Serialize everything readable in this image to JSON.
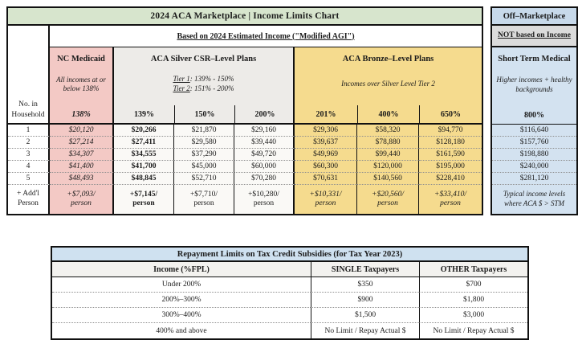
{
  "colors": {
    "green": "#d7e5cd",
    "pink": "#f3c9c5",
    "silver-head": "#edebe8",
    "silver-cell": "#faf9f6",
    "bronze": "#f5db8e",
    "off-header": "#c7d9ea",
    "off-body": "#d3e2f0",
    "off-gray": "#dbdbdb",
    "bt-title": "#cfe1f0",
    "bt-head": "#f3f2ef",
    "line": "#111111",
    "dot": "#8f8f8f"
  },
  "main": {
    "title": "2024 ACA Marketplace | Income Limits Chart",
    "subtitle": "Based on 2024 Estimated Income (\"Modified AGI\")",
    "household_header": "No. in Household",
    "sections": {
      "medicaid": {
        "title": "NC Medicaid",
        "note": "All incomes at or below 138%"
      },
      "silver": {
        "title": "ACA Silver CSR–Level Plans",
        "tiers": [
          {
            "label": "Tier 1",
            "range": ": 139% - 150%"
          },
          {
            "label": "Tier 2",
            "range": ": 151% - 200%"
          }
        ]
      },
      "bronze": {
        "title": "ACA Bronze–Level Plans",
        "note": "Incomes over Silver Level Tier 2"
      }
    },
    "percent_headers": [
      "138%",
      "139%",
      "150%",
      "200%",
      "201%",
      "400%",
      "650%"
    ],
    "rows": [
      {
        "label": "1",
        "values": [
          "$20,120",
          "$20,266",
          "$21,870",
          "$29,160",
          "$29,306",
          "$58,320",
          "$94,770"
        ]
      },
      {
        "label": "2",
        "values": [
          "$27,214",
          "$27,411",
          "$29,580",
          "$39,440",
          "$39,637",
          "$78,880",
          "$128,180"
        ]
      },
      {
        "label": "3",
        "values": [
          "$34,307",
          "$34,555",
          "$37,290",
          "$49,720",
          "$49,969",
          "$99,440",
          "$161,590"
        ]
      },
      {
        "label": "4",
        "values": [
          "$41,400",
          "$41,700",
          "$45,000",
          "$60,000",
          "$60,300",
          "$120,000",
          "$195,000"
        ]
      },
      {
        "label": "5",
        "values": [
          "$48,493",
          "$48,845",
          "$52,710",
          "$70,280",
          "$70,631",
          "$140,560",
          "$228,410"
        ]
      }
    ],
    "addl": {
      "label": "+ Add'l Person",
      "values": [
        "+$7,093/",
        "+$7,145/",
        "+$7,710/",
        "+$10,280/",
        "+$10,331/",
        "+$20,560/",
        "+$33,410/"
      ],
      "person_label": "person"
    }
  },
  "off_marketplace": {
    "title": "Off–Marketplace",
    "not_based": "NOT based on Income",
    "section_title": "Short Term Medical",
    "note": "Higher incomes + healthy backgrounds",
    "percent_header": "800%",
    "values": [
      "$116,640",
      "$157,760",
      "$198,880",
      "$240,000",
      "$281,120"
    ],
    "footer": "Typical income levels where ACA $ > STM"
  },
  "repayment": {
    "title": "Repayment Limits on Tax Credit Subsidies (for Tax Year 2023)",
    "headers": [
      "Income (%FPL)",
      "SINGLE Taxpayers",
      "OTHER Taxpayers"
    ],
    "rows": [
      {
        "income": "Under 200%",
        "single": "$350",
        "other": "$700"
      },
      {
        "income": "200%–300%",
        "single": "$900",
        "other": "$1,800"
      },
      {
        "income": "300%–400%",
        "single": "$1,500",
        "other": "$3,000"
      },
      {
        "income": "400% and above",
        "single": "No Limit / Repay Actual $",
        "other": "No Limit / Repay Actual $"
      }
    ]
  }
}
